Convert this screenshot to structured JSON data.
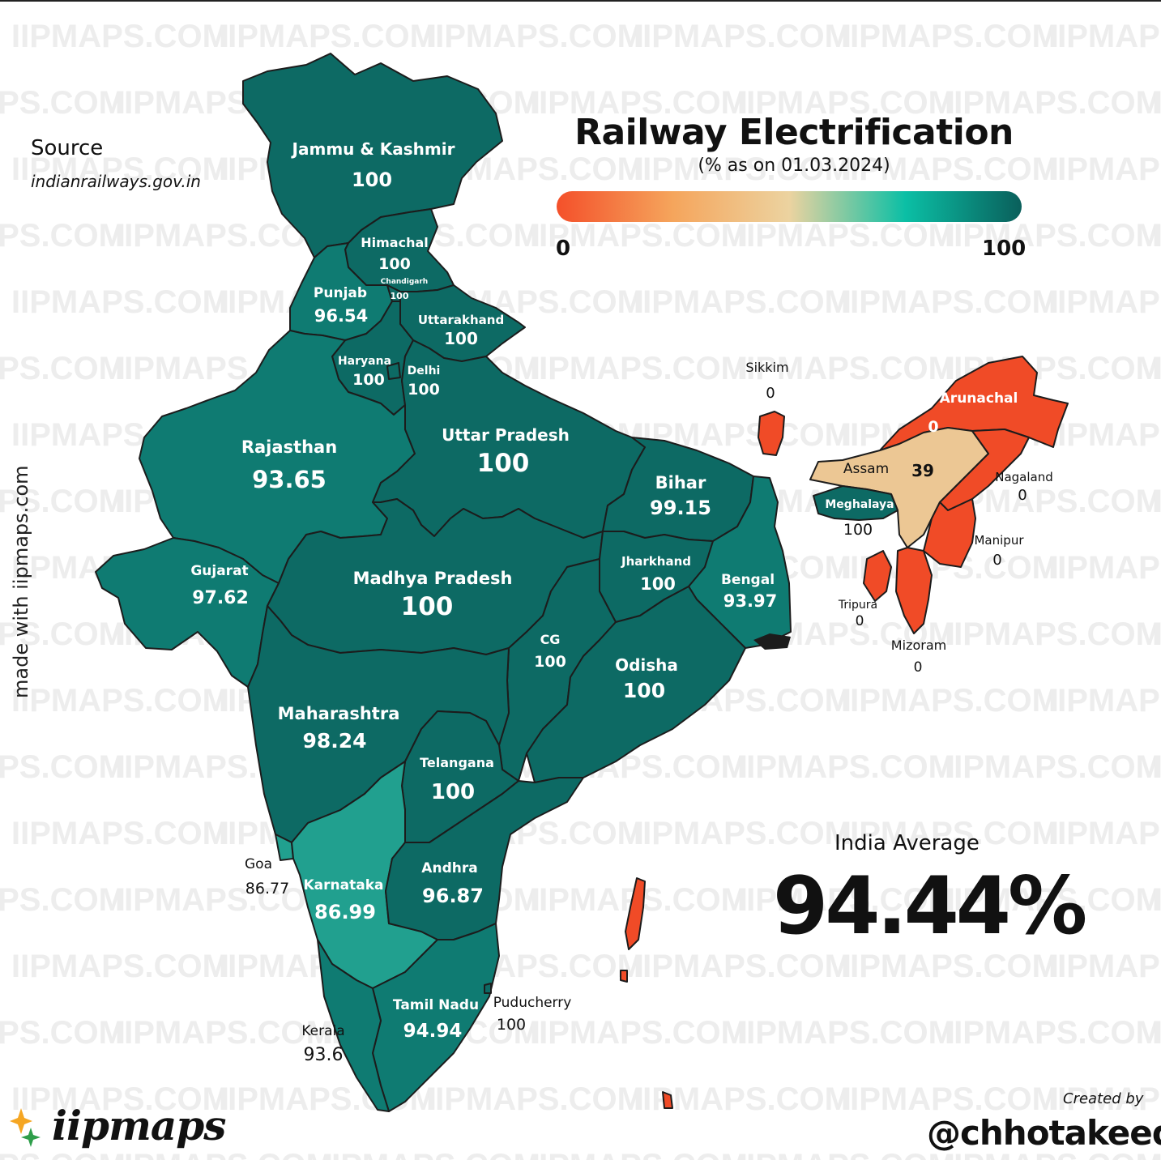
{
  "title": "Railway Electrification",
  "subtitle": "(% as on 01.03.2024)",
  "legend": {
    "min_label": "0",
    "max_label": "100",
    "colors": [
      "#f4502a",
      "#f5a55c",
      "#ecd3a0",
      "#0bbfa5",
      "#0a5f5b"
    ]
  },
  "source": {
    "heading": "Source",
    "url": "indianrailways.gov.in"
  },
  "side_text": "made with iipmaps.com",
  "india_average": {
    "label": "India Average",
    "value": "94.44%"
  },
  "credit": {
    "created_by": "Created by",
    "handle": "@chhotakeeda"
  },
  "brand": {
    "name": "iipmaps"
  },
  "watermark": "IIPMAPS.COM",
  "colors": {
    "high": "#0d6a64",
    "mid_high": "#0f7b72",
    "mid": "#14897e",
    "low_mid": "#21a08f",
    "assam": "#ecc794",
    "zero": "#f04b27",
    "border": "#1c1c1c"
  },
  "states": [
    {
      "id": "jk",
      "name": "Jammu & Kashmir",
      "value": "100"
    },
    {
      "id": "hp",
      "name": "Himachal",
      "value": "100"
    },
    {
      "id": "ch",
      "name": "Chandigarh",
      "value": "100"
    },
    {
      "id": "pb",
      "name": "Punjab",
      "value": "96.54"
    },
    {
      "id": "uk",
      "name": "Uttarakhand",
      "value": "100"
    },
    {
      "id": "hr",
      "name": "Haryana",
      "value": "100"
    },
    {
      "id": "dl",
      "name": "Delhi",
      "value": "100"
    },
    {
      "id": "rj",
      "name": "Rajasthan",
      "value": "93.65"
    },
    {
      "id": "up",
      "name": "Uttar Pradesh",
      "value": "100"
    },
    {
      "id": "br",
      "name": "Bihar",
      "value": "99.15"
    },
    {
      "id": "gj",
      "name": "Gujarat",
      "value": "97.62"
    },
    {
      "id": "mp",
      "name": "Madhya Pradesh",
      "value": "100"
    },
    {
      "id": "jh",
      "name": "Jharkhand",
      "value": "100"
    },
    {
      "id": "wb",
      "name": "Bengal",
      "value": "93.97"
    },
    {
      "id": "cg",
      "name": "CG",
      "value": "100"
    },
    {
      "id": "od",
      "name": "Odisha",
      "value": "100"
    },
    {
      "id": "mh",
      "name": "Maharashtra",
      "value": "98.24"
    },
    {
      "id": "tg",
      "name": "Telangana",
      "value": "100"
    },
    {
      "id": "ga",
      "name": "Goa",
      "value": "86.77"
    },
    {
      "id": "ka",
      "name": "Karnataka",
      "value": "86.99"
    },
    {
      "id": "ap",
      "name": "Andhra",
      "value": "96.87"
    },
    {
      "id": "tn",
      "name": "Tamil Nadu",
      "value": "94.94"
    },
    {
      "id": "py",
      "name": "Puducherry",
      "value": "100"
    },
    {
      "id": "kl",
      "name": "Kerala",
      "value": "93.6"
    },
    {
      "id": "sk",
      "name": "Sikkim",
      "value": "0"
    },
    {
      "id": "ar",
      "name": "Arunachal",
      "value": "0"
    },
    {
      "id": "as",
      "name": "Assam",
      "value": "39"
    },
    {
      "id": "nl",
      "name": "Nagaland",
      "value": "0"
    },
    {
      "id": "ml",
      "name": "Meghalaya",
      "value": "100"
    },
    {
      "id": "mn",
      "name": "Manipur",
      "value": "0"
    },
    {
      "id": "tr",
      "name": "Tripura",
      "value": "0"
    },
    {
      "id": "mz",
      "name": "Mizoram",
      "value": "0"
    }
  ]
}
